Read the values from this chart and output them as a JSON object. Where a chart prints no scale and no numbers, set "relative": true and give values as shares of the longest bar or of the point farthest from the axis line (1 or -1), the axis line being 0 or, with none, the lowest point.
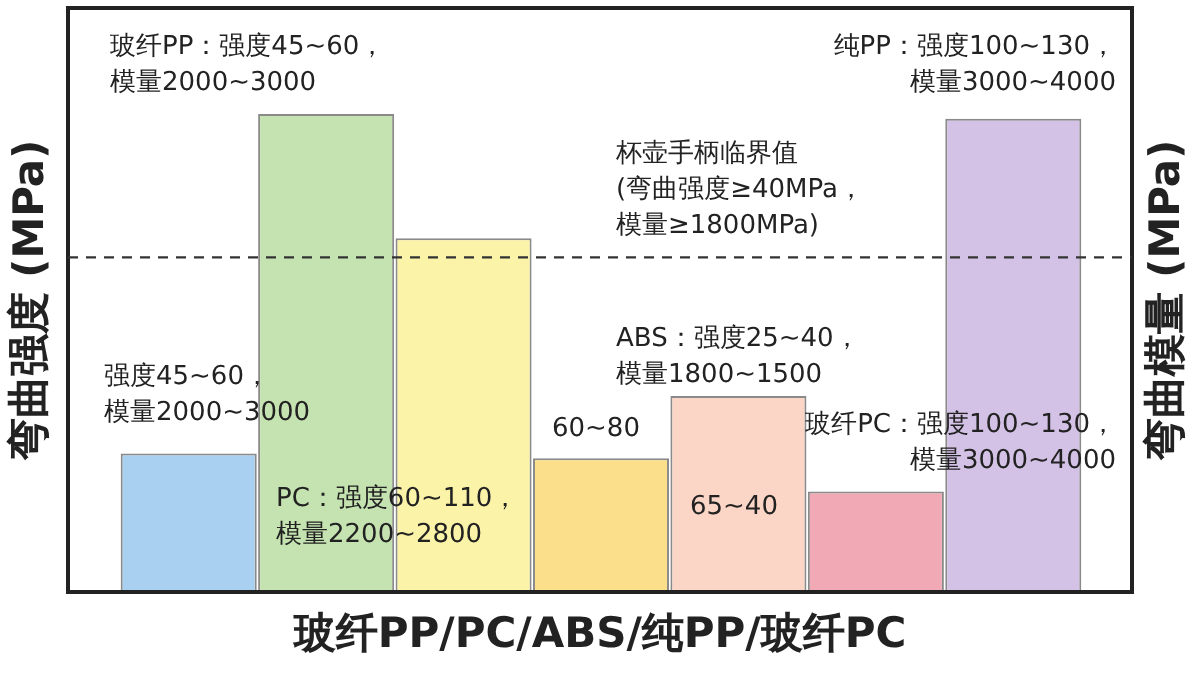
{
  "chart_data": {
    "type": "bar",
    "relative": true,
    "categories": [
      null,
      null,
      null,
      null,
      null,
      null,
      null
    ],
    "values": [
      0.29,
      1,
      0.74,
      0.28,
      0.41,
      0.21,
      0.99
    ],
    "colors": [
      "#a9d0f0",
      "#c5e3b0",
      "#fbf3a8",
      "#fbdf8a",
      "#fbd5c5",
      "#f0a9b5",
      "#d4c2e6"
    ],
    "xlabel": "玻纤PP/PC/ABS/纯PP/玻纤PC",
    "ylabel": "弯曲强度 (MPa)",
    "y2label": "弯曲模量 (MPa)",
    "ref_lines": [
      {
        "axis": "y",
        "value": 0.7,
        "label": "杯壶手柄临界值(弯曲强度≥40MPa，模量≥1800MPa)",
        "line_style": "dashed",
        "color": "#333333"
      }
    ],
    "annotations": [
      "玻纤PP：强度45~60，模量2000~3000",
      "强度45~60，模量2000~3000",
      "PC：强度60~110，模量2200~2800",
      "60~80",
      "ABS：强度25~40，模量1800~1500",
      "65~40",
      "玻纤PC：强度100~130，模量3000~4000",
      "纯PP：强度100~130，模量3000~4000"
    ]
  }
}
